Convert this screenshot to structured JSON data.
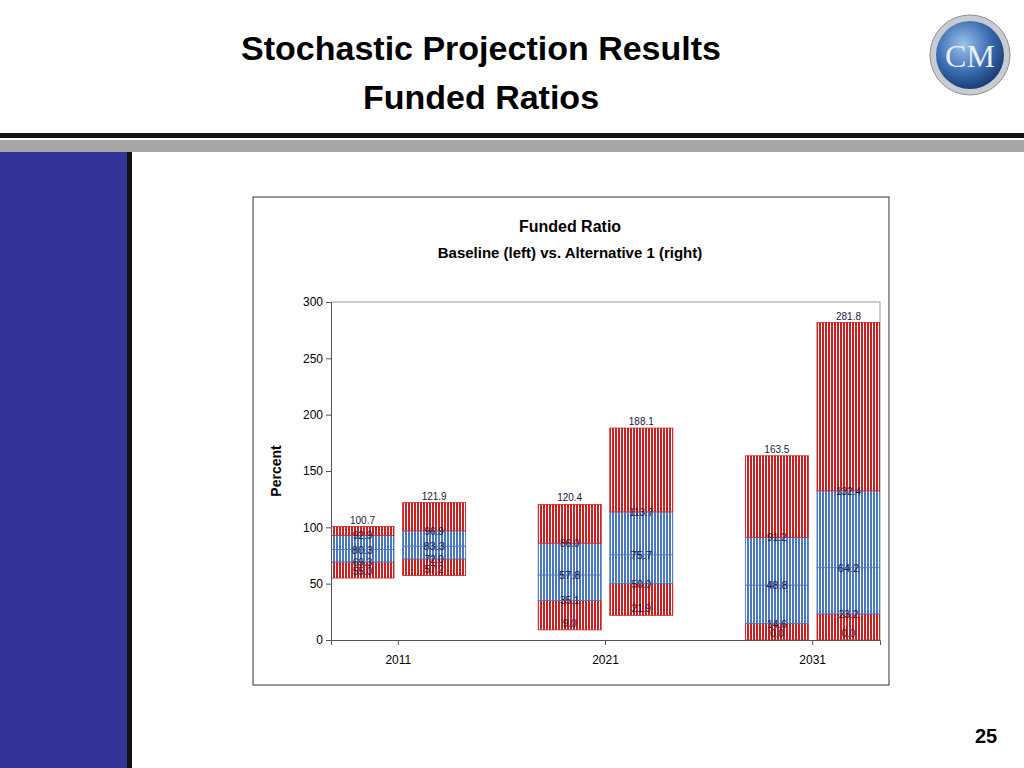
{
  "page": {
    "title": [
      "Stochastic Projection Results",
      "Funded Ratios"
    ],
    "logo": "CM",
    "page_number": "25"
  },
  "chart_data": {
    "type": "floating_bar",
    "title": "Funded Ratio",
    "subtitle": "Baseline (left) vs. Alternative 1 (right)",
    "y_label": "Percent",
    "categories": [
      "2011",
      "2021",
      "2031"
    ],
    "series": [
      {
        "values": [
          [
            55.0,
            69.3,
            80.3,
            92.9,
            100.7
          ],
          [
            9.0,
            35.1,
            57.8,
            86.0,
            120.4
          ],
          [
            0.0,
            14.6,
            48.8,
            91.2,
            163.5
          ]
        ],
        "value_labels": [
          [
            "55.0",
            "69.3",
            "80.3",
            "92.9",
            "100.7"
          ],
          [
            "9.0",
            "35.1",
            "57.8",
            "86.0",
            "120.4"
          ],
          [
            "0.0",
            "14.6",
            "48.8",
            "91.2",
            "163.5"
          ]
        ]
      },
      {
        "values": [
          [
            57.2,
            72.0,
            83.3,
            96.9,
            121.9
          ],
          [
            21.9,
            50.0,
            75.7,
            113.7,
            188.1
          ],
          [
            0.0,
            23.2,
            64.2,
            132.4,
            281.8
          ]
        ],
        "value_labels": [
          [
            "57.2",
            "72.0",
            "83.3",
            "96.9",
            "121.9"
          ],
          [
            "21.9",
            "50.0",
            "75.7",
            "113.7",
            "188.1"
          ],
          [
            "0.0",
            "23.2",
            "64.2",
            "132.4",
            "281.8"
          ]
        ]
      }
    ],
    "colors": [
      "#cc1f1f",
      "#4a78c0",
      "#4a78c0",
      "#cc1f1f"
    ],
    "ylim": [
      0,
      300
    ],
    "yticks": [
      0,
      50,
      100,
      150,
      200,
      250,
      300
    ],
    "grid": false,
    "data_labels": true
  }
}
